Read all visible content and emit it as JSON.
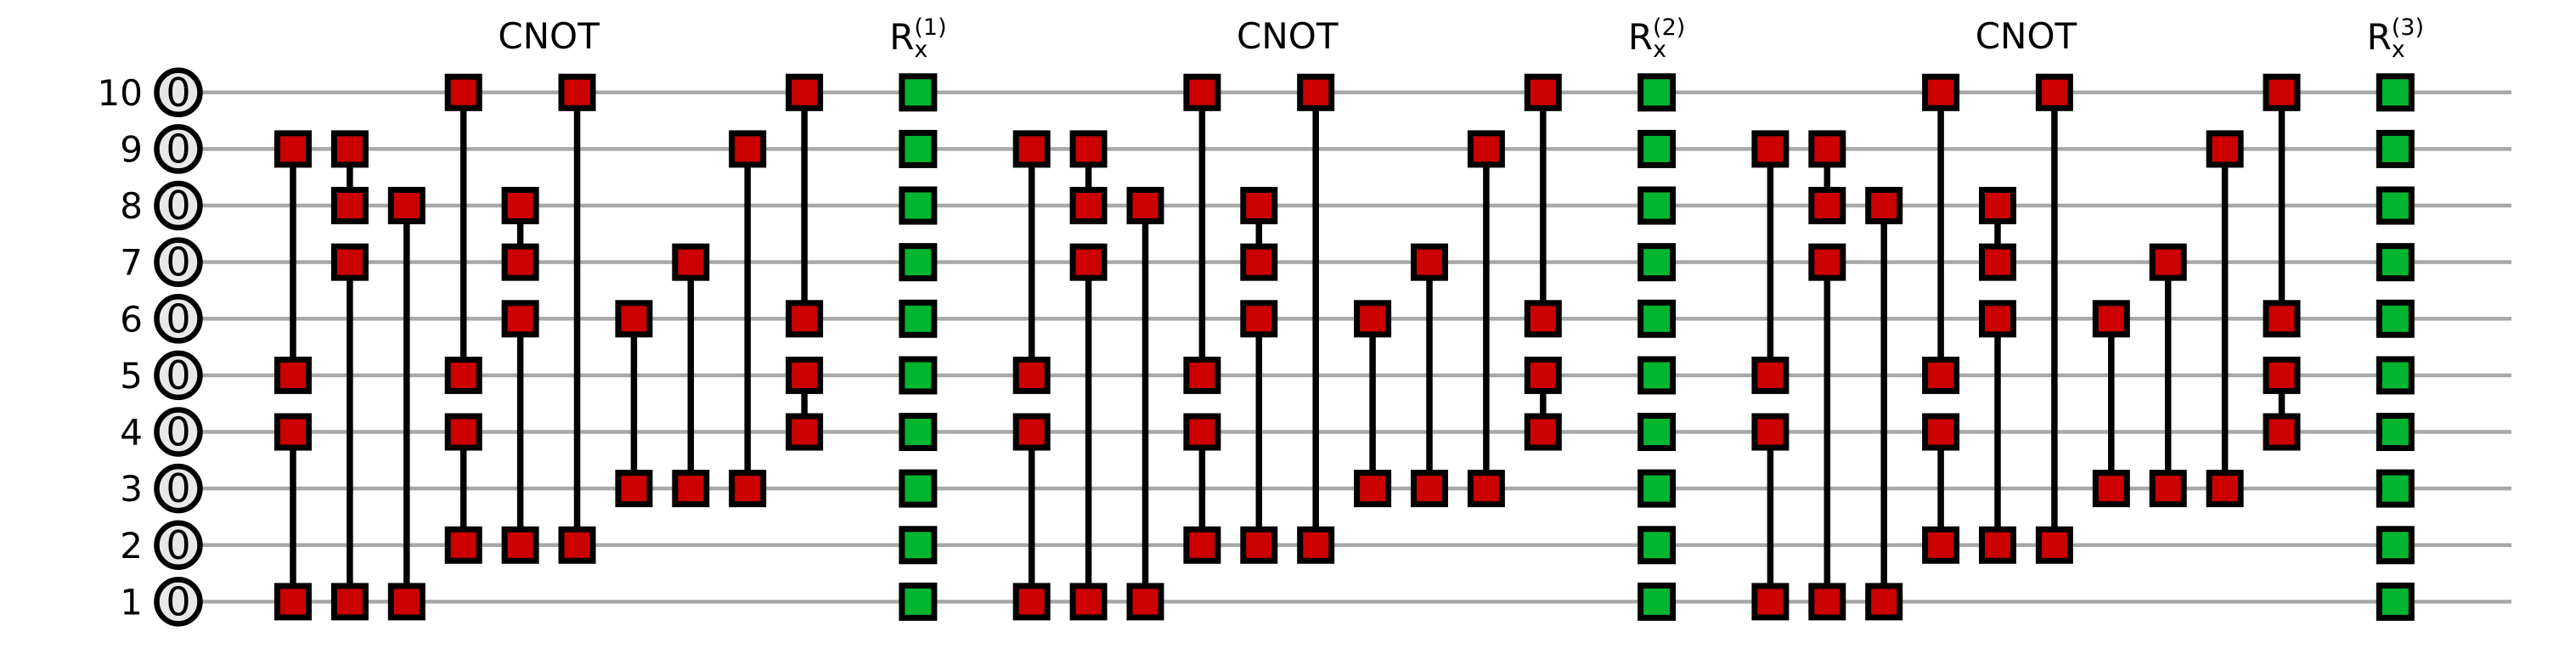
{
  "figure": {
    "type": "quantum-circuit",
    "qubits": [
      {
        "label": "10",
        "state": "0"
      },
      {
        "label": "9",
        "state": "0"
      },
      {
        "label": "8",
        "state": "0"
      },
      {
        "label": "7",
        "state": "0"
      },
      {
        "label": "6",
        "state": "0"
      },
      {
        "label": "5",
        "state": "0"
      },
      {
        "label": "4",
        "state": "0"
      },
      {
        "label": "3",
        "state": "0"
      },
      {
        "label": "2",
        "state": "0"
      },
      {
        "label": "1",
        "state": "0"
      }
    ],
    "blocks": [
      {
        "cnot_label": "CNOT",
        "rx_label": {
          "base": "R",
          "sub": "x",
          "sup": "(1)"
        }
      },
      {
        "cnot_label": "CNOT",
        "rx_label": {
          "base": "R",
          "sub": "x",
          "sup": "(2)"
        }
      },
      {
        "cnot_label": "CNOT",
        "rx_label": {
          "base": "R",
          "sub": "x",
          "sup": "(3)"
        }
      }
    ],
    "cnot_gate_pattern": [
      {
        "col": 0,
        "q1": 9,
        "q2": 5
      },
      {
        "col": 0,
        "q1": 4,
        "q2": 1
      },
      {
        "col": 1,
        "q1": 9,
        "q2": 8
      },
      {
        "col": 1,
        "q1": 7,
        "q2": 1
      },
      {
        "col": 2,
        "q1": 8,
        "q2": 1
      },
      {
        "col": 3,
        "q1": 10,
        "q2": 5
      },
      {
        "col": 3,
        "q1": 4,
        "q2": 2
      },
      {
        "col": 4,
        "q1": 8,
        "q2": 7
      },
      {
        "col": 4,
        "q1": 6,
        "q2": 2
      },
      {
        "col": 5,
        "q1": 10,
        "q2": 2
      },
      {
        "col": 6,
        "q1": 6,
        "q2": 3
      },
      {
        "col": 7,
        "q1": 7,
        "q2": 3
      },
      {
        "col": 8,
        "q1": 9,
        "q2": 3
      },
      {
        "col": 9,
        "q1": 10,
        "q2": 6
      },
      {
        "col": 9,
        "q1": 5,
        "q2": 4
      }
    ],
    "colors": {
      "cnot_fill": "#cc0000",
      "rx_fill": "#00b52f",
      "wire": "#a8a8a8",
      "outline": "#000000",
      "state_fill": "#e8e8e8",
      "background": "#ffffff"
    }
  }
}
